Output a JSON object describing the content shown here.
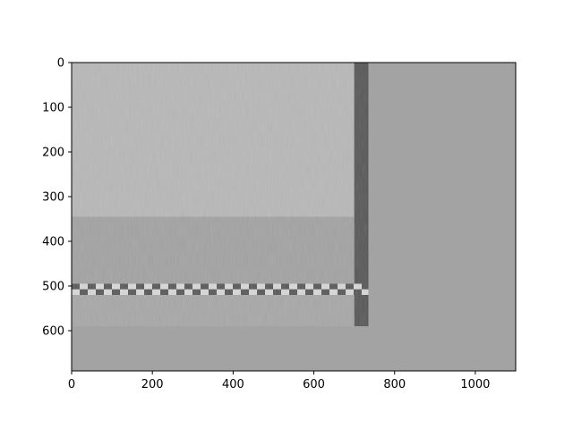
{
  "chart_data": {
    "type": "heatmap",
    "title": "",
    "xlabel": "",
    "ylabel": "",
    "colormap": "grayscale",
    "xlim": [
      0,
      1100
    ],
    "ylim": [
      690,
      0
    ],
    "grid": false,
    "x_ticks": [
      0,
      200,
      400,
      600,
      800,
      1000
    ],
    "y_ticks": [
      0,
      100,
      200,
      300,
      400,
      500,
      600
    ],
    "x_tick_labels": [
      "0",
      "200",
      "400",
      "600",
      "800",
      "1000"
    ],
    "y_tick_labels": [
      "0",
      "100",
      "200",
      "300",
      "400",
      "500",
      "600"
    ],
    "regions": [
      {
        "label": "image-content",
        "x": [
          0,
          700
        ],
        "y": [
          0,
          345
        ],
        "gray": 0.72
      },
      {
        "label": "dark-vertical-band",
        "x": [
          700,
          735
        ],
        "y": [
          0,
          590
        ],
        "gray": 0.35
      },
      {
        "label": "noisy-band",
        "x": [
          0,
          700
        ],
        "y": [
          345,
          495
        ],
        "gray": 0.64
      },
      {
        "label": "checker-stripe",
        "x": [
          0,
          735
        ],
        "y": [
          495,
          520
        ],
        "gray": 0.55
      },
      {
        "label": "image-content-lower",
        "x": [
          0,
          700
        ],
        "y": [
          520,
          590
        ],
        "gray": 0.66
      },
      {
        "label": "background",
        "x": [
          0,
          1100
        ],
        "y": [
          0,
          690
        ],
        "gray": 0.64
      }
    ],
    "colors": {
      "background": "#a4a4a4",
      "axes": "#000000"
    }
  }
}
